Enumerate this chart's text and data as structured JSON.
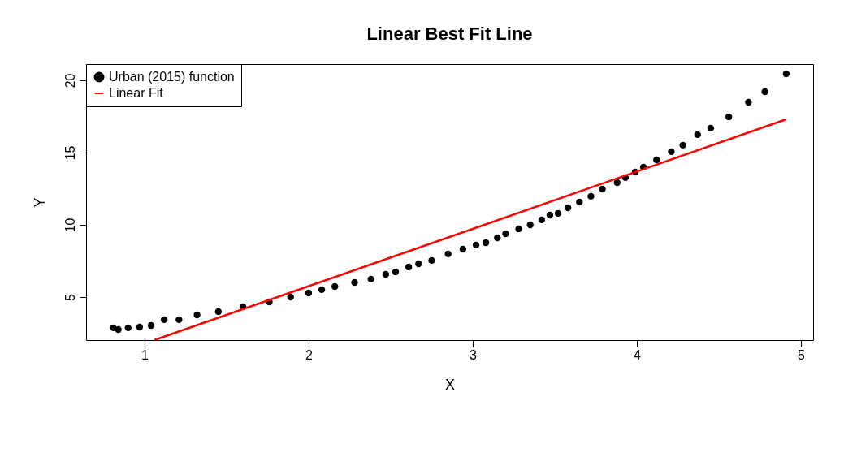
{
  "chart_data": {
    "type": "scatter",
    "title": "Linear Best Fit Line",
    "xlabel": "X",
    "ylabel": "Y",
    "xlim": [
      0.644,
      5.074
    ],
    "ylim": [
      2.02,
      21.12
    ],
    "xticks": [
      1,
      2,
      3,
      4,
      5
    ],
    "yticks": [
      5,
      10,
      15,
      20
    ],
    "grid": false,
    "legend": "top left",
    "series": [
      {
        "name": "Urban (2015) function",
        "color": "#000000",
        "marker": "circle",
        "x": [
          0.81,
          0.84,
          0.9,
          0.97,
          1.04,
          1.12,
          1.21,
          1.32,
          1.45,
          1.6,
          1.76,
          1.89,
          2.0,
          2.08,
          2.16,
          2.28,
          2.38,
          2.47,
          2.53,
          2.61,
          2.67,
          2.75,
          2.85,
          2.94,
          3.02,
          3.08,
          3.15,
          3.2,
          3.28,
          3.35,
          3.42,
          3.47,
          3.52,
          3.58,
          3.65,
          3.72,
          3.79,
          3.88,
          3.93,
          3.99,
          4.04,
          4.12,
          4.21,
          4.28,
          4.37,
          4.45,
          4.56,
          4.68,
          4.78,
          4.91
        ],
        "values": [
          2.87,
          2.75,
          2.87,
          2.92,
          3.03,
          3.43,
          3.43,
          3.76,
          3.99,
          4.33,
          4.66,
          5.0,
          5.28,
          5.51,
          5.73,
          6.01,
          6.24,
          6.57,
          6.74,
          7.08,
          7.3,
          7.53,
          7.98,
          8.31,
          8.6,
          8.76,
          9.1,
          9.38,
          9.72,
          10.0,
          10.34,
          10.67,
          10.79,
          11.18,
          11.57,
          11.97,
          12.47,
          12.92,
          13.26,
          13.65,
          13.99,
          14.49,
          15.06,
          15.51,
          16.24,
          16.69,
          17.47,
          18.48,
          19.21,
          20.45
        ]
      },
      {
        "name": "Linear Fit",
        "color": "#ff0000",
        "type": "line",
        "line_style": "solid",
        "x": [
          1.06,
          4.91
        ],
        "values": [
          2.02,
          17.3
        ]
      }
    ]
  }
}
